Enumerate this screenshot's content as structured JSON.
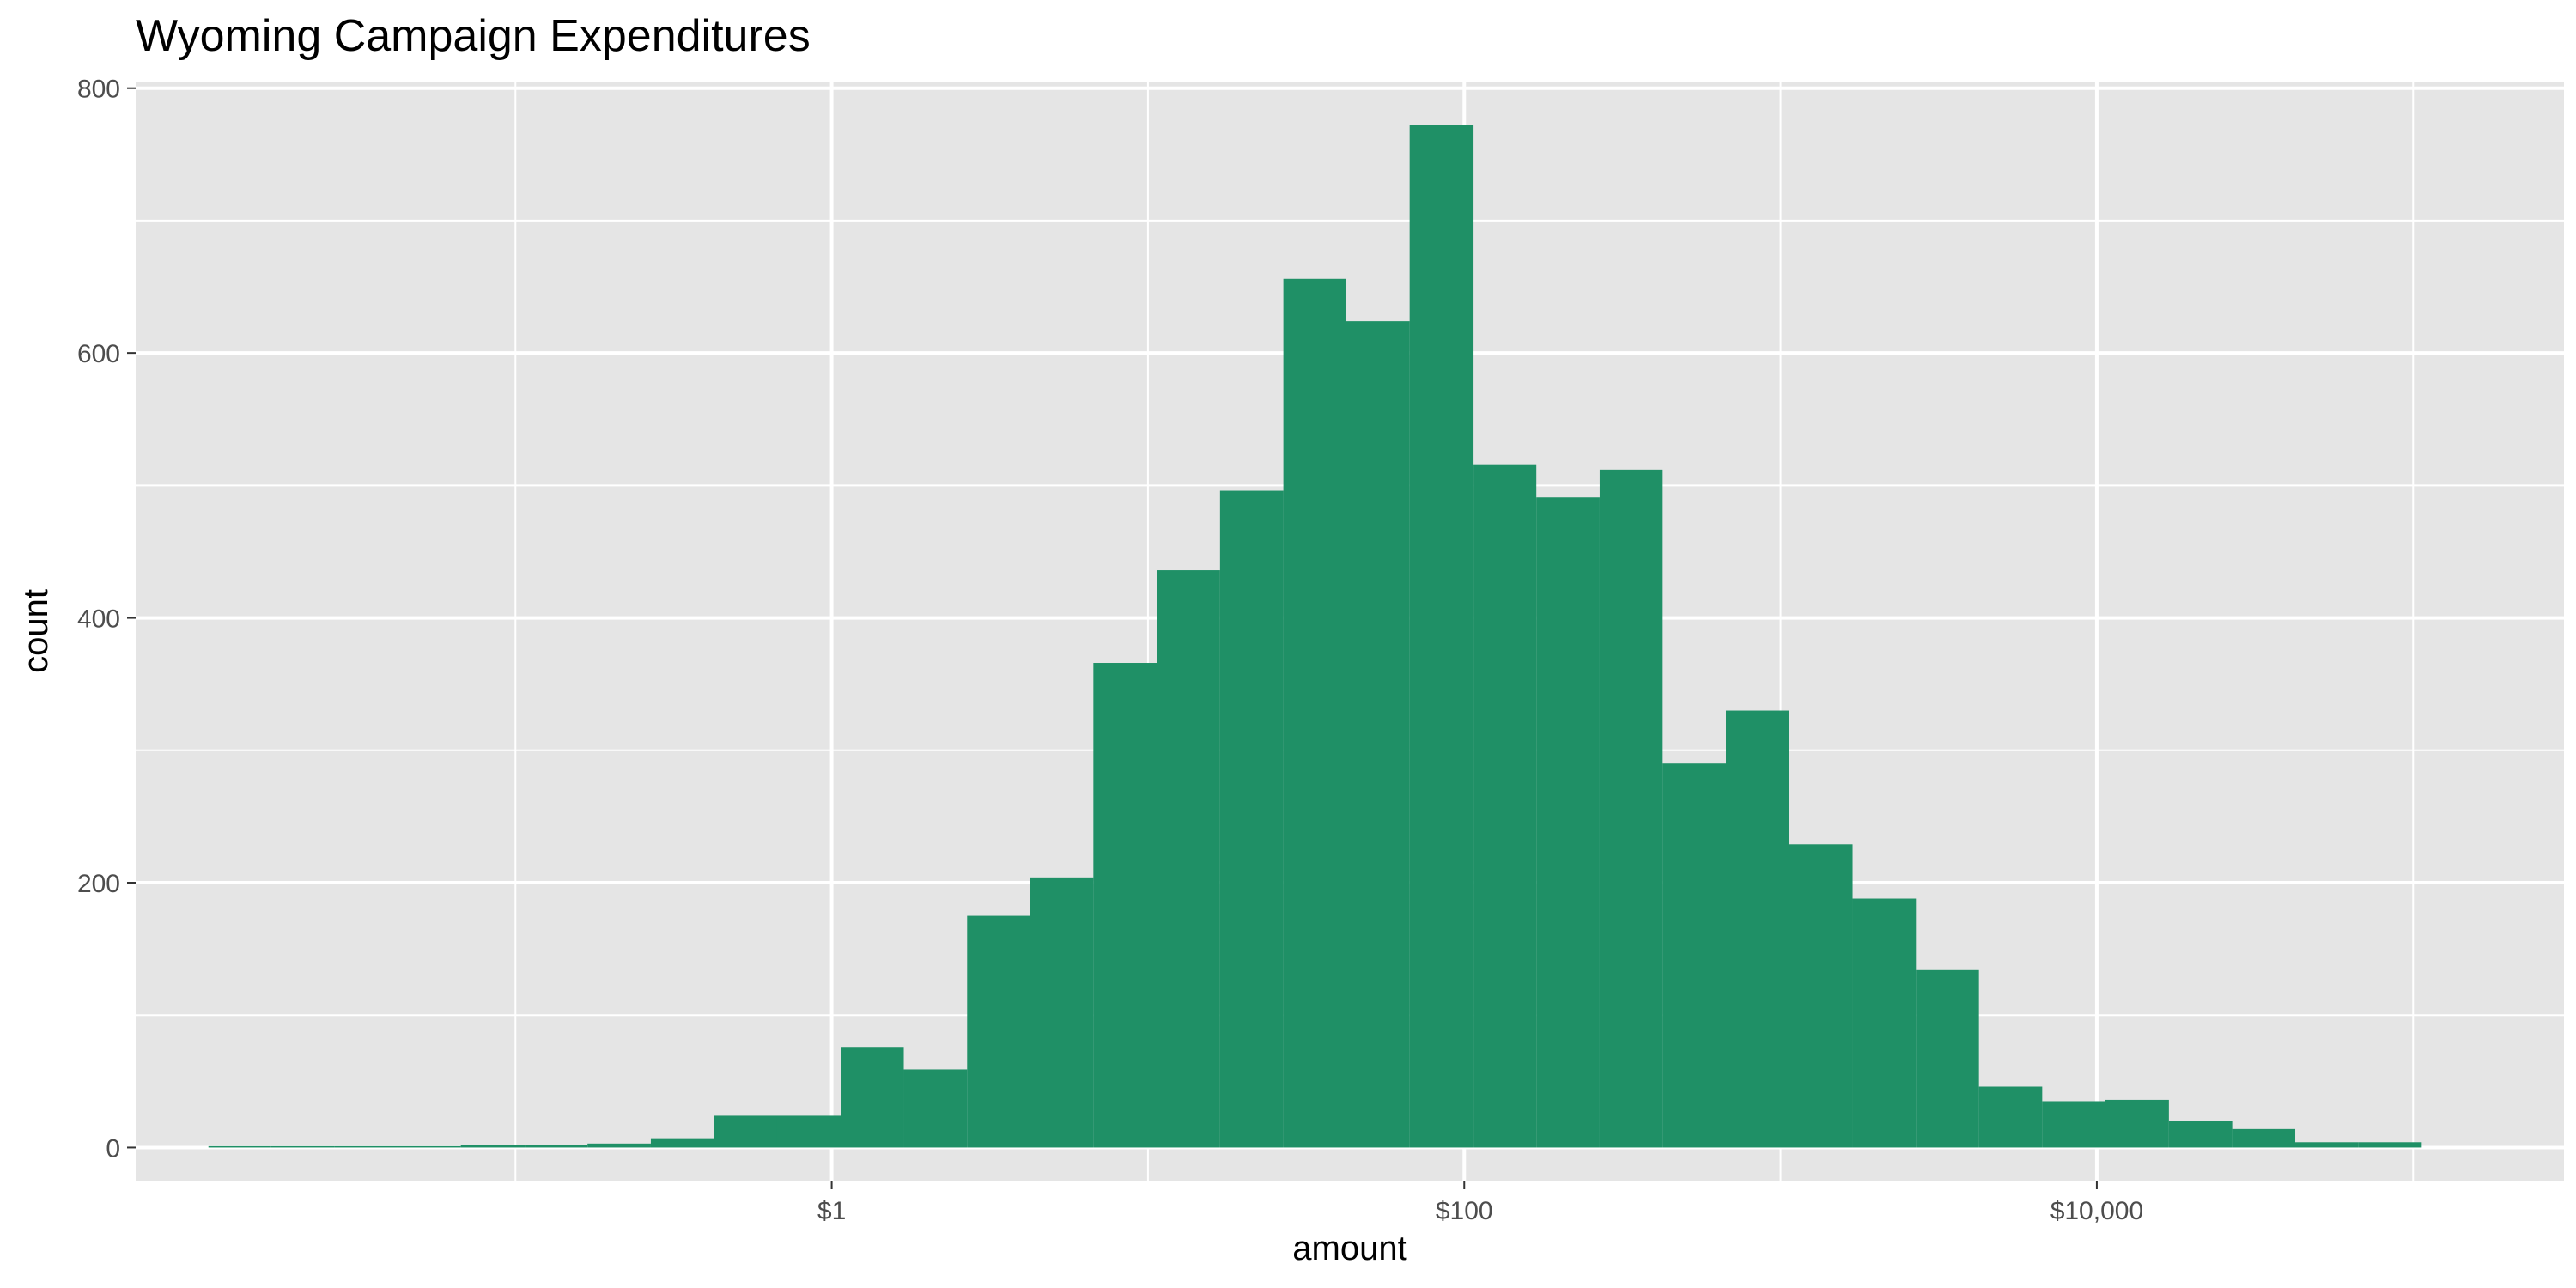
{
  "chart_data": {
    "type": "bar",
    "title": "Wyoming Campaign Expenditures",
    "xlabel": "amount",
    "ylabel": "count",
    "x_scale": "log10",
    "x_ticks": [
      {
        "value": 1,
        "label": "$1"
      },
      {
        "value": 100,
        "label": "$100"
      },
      {
        "value": 10000,
        "label": "$10,000"
      }
    ],
    "y_ticks": [
      0,
      200,
      400,
      600,
      800
    ],
    "xlim": [
      0.0063,
      300000
    ],
    "ylim": [
      -25,
      805
    ],
    "grid": true,
    "legend": "none",
    "colors": {
      "bar": "#1F9066",
      "panel": "#E5E5E5",
      "grid": "#FFFFFF",
      "tick_label": "#4D4D4D"
    },
    "bins": [
      {
        "x_from": 0.0107,
        "x_to": 0.0169,
        "count": 1
      },
      {
        "x_from": 0.0169,
        "x_to": 0.0268,
        "count": 1
      },
      {
        "x_from": 0.0268,
        "x_to": 0.0424,
        "count": 1
      },
      {
        "x_from": 0.0424,
        "x_to": 0.0672,
        "count": 1
      },
      {
        "x_from": 0.0672,
        "x_to": 0.107,
        "count": 2
      },
      {
        "x_from": 0.107,
        "x_to": 0.169,
        "count": 2
      },
      {
        "x_from": 0.169,
        "x_to": 0.268,
        "count": 3
      },
      {
        "x_from": 0.268,
        "x_to": 0.424,
        "count": 7
      },
      {
        "x_from": 0.424,
        "x_to": 0.672,
        "count": 24
      },
      {
        "x_from": 0.672,
        "x_to": 1.07,
        "count": 24
      },
      {
        "x_from": 1.07,
        "x_to": 1.69,
        "count": 76
      },
      {
        "x_from": 1.69,
        "x_to": 2.68,
        "count": 59
      },
      {
        "x_from": 2.68,
        "x_to": 4.24,
        "count": 175
      },
      {
        "x_from": 4.24,
        "x_to": 6.72,
        "count": 204
      },
      {
        "x_from": 6.72,
        "x_to": 10.7,
        "count": 366
      },
      {
        "x_from": 10.7,
        "x_to": 16.9,
        "count": 436
      },
      {
        "x_from": 16.9,
        "x_to": 26.8,
        "count": 496
      },
      {
        "x_from": 26.8,
        "x_to": 42.4,
        "count": 656
      },
      {
        "x_from": 42.4,
        "x_to": 67.2,
        "count": 624
      },
      {
        "x_from": 67.2,
        "x_to": 107,
        "count": 772
      },
      {
        "x_from": 107,
        "x_to": 169,
        "count": 516
      },
      {
        "x_from": 169,
        "x_to": 268,
        "count": 491
      },
      {
        "x_from": 268,
        "x_to": 424,
        "count": 512
      },
      {
        "x_from": 424,
        "x_to": 672,
        "count": 290
      },
      {
        "x_from": 672,
        "x_to": 1065,
        "count": 330
      },
      {
        "x_from": 1065,
        "x_to": 1690,
        "count": 229
      },
      {
        "x_from": 1690,
        "x_to": 2680,
        "count": 188
      },
      {
        "x_from": 2680,
        "x_to": 4240,
        "count": 134
      },
      {
        "x_from": 4240,
        "x_to": 6720,
        "count": 46
      },
      {
        "x_from": 6720,
        "x_to": 10650,
        "count": 35
      },
      {
        "x_from": 10650,
        "x_to": 16900,
        "count": 36
      },
      {
        "x_from": 16900,
        "x_to": 26800,
        "count": 20
      },
      {
        "x_from": 26800,
        "x_to": 42400,
        "count": 14
      },
      {
        "x_from": 42400,
        "x_to": 67200,
        "count": 4
      },
      {
        "x_from": 67200,
        "x_to": 106500,
        "count": 4
      }
    ]
  }
}
